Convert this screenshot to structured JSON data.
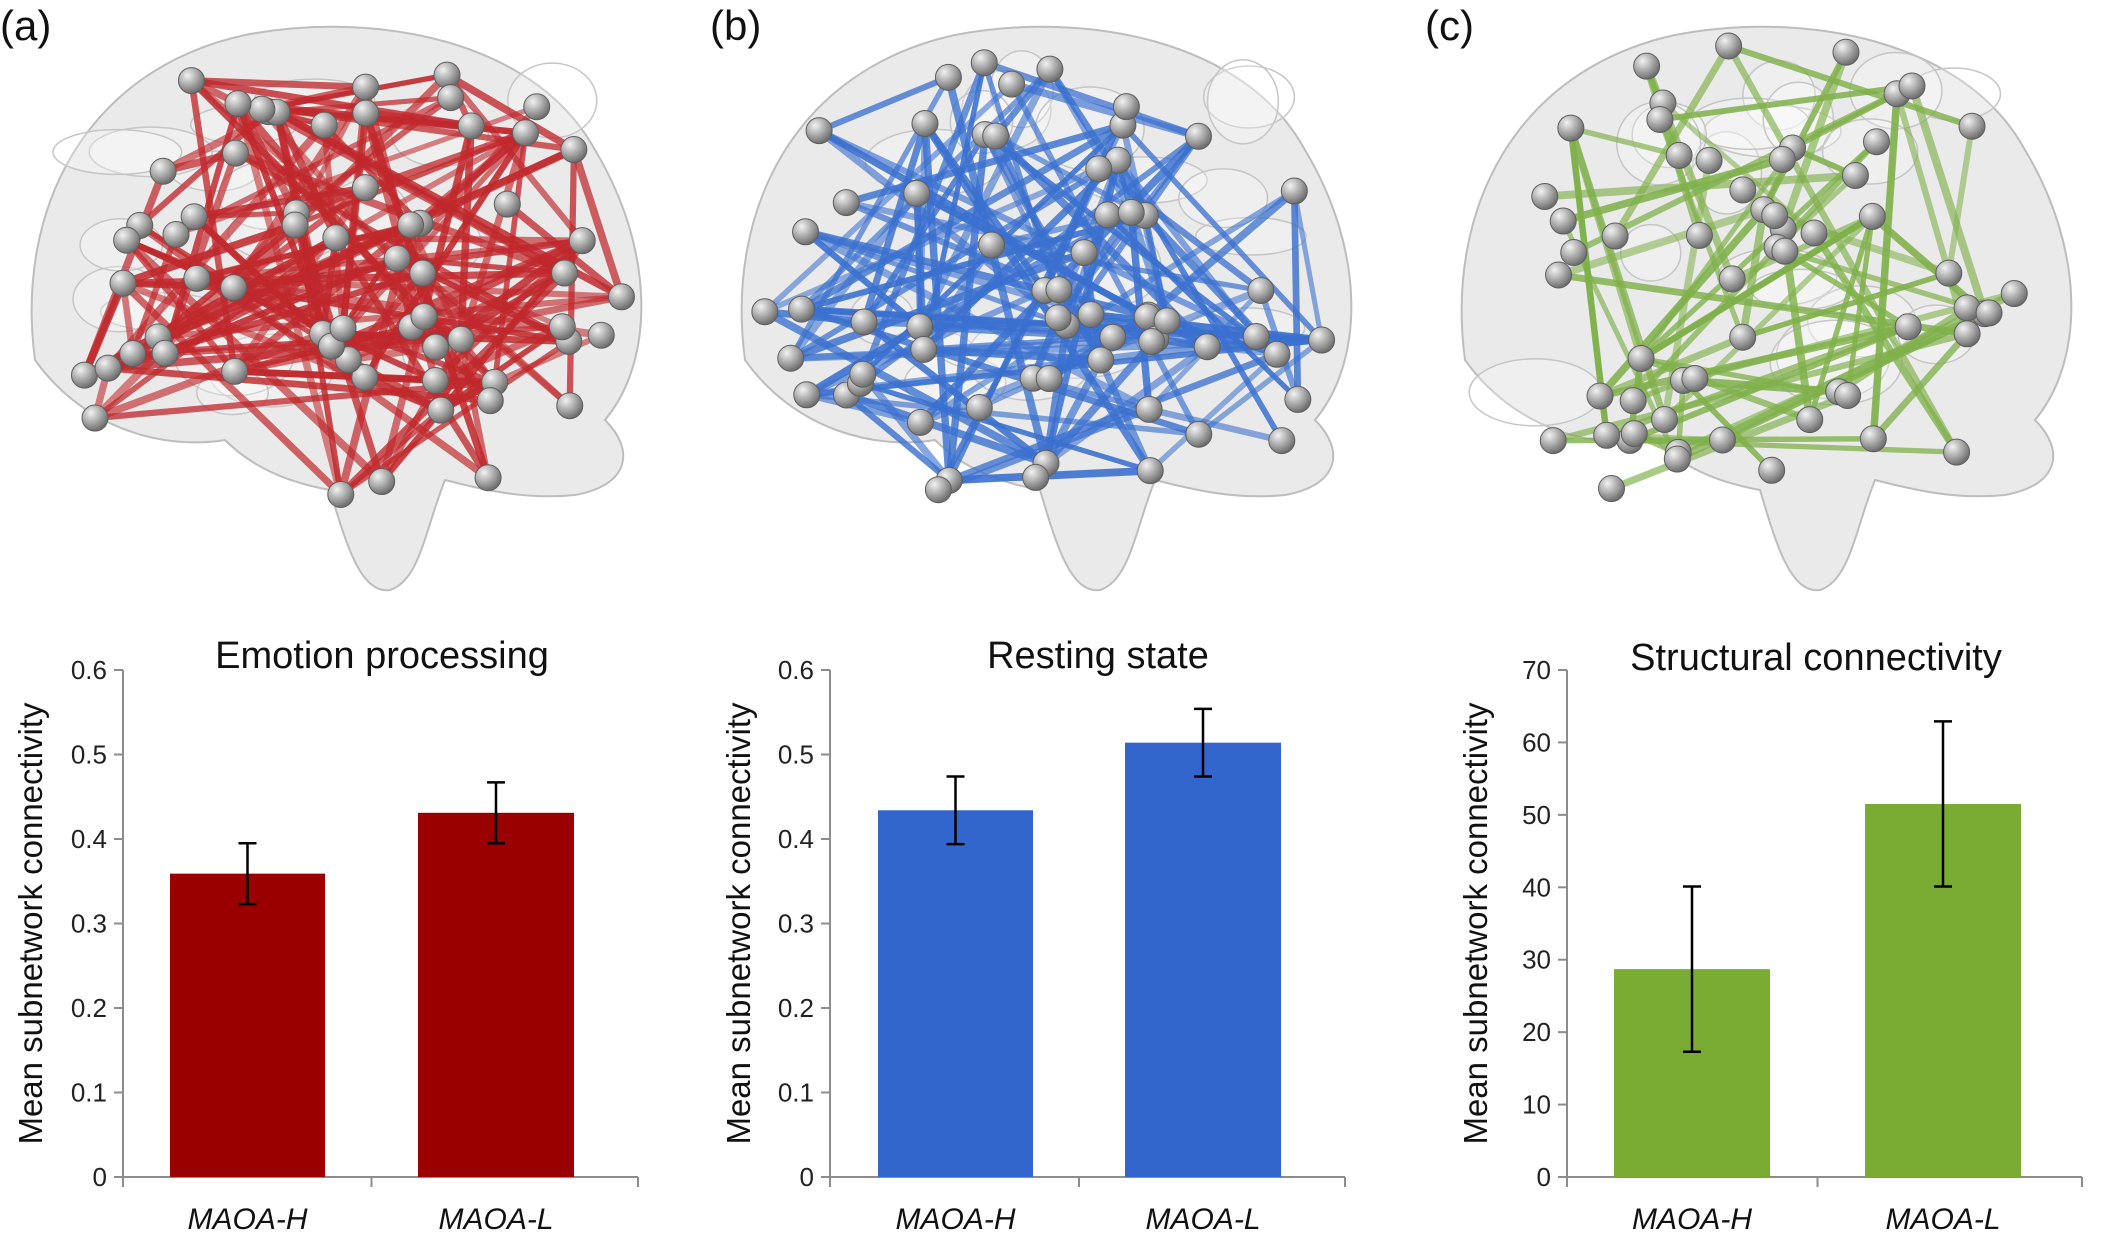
{
  "panels": [
    {
      "letter": "(a)",
      "brain_color": "#c0282c"
    },
    {
      "letter": "(b)",
      "brain_color": "#3a70cf"
    },
    {
      "letter": "(c)",
      "brain_color": "#7fb04a"
    }
  ],
  "chart_data": [
    {
      "type": "bar",
      "title": "Emotion processing",
      "ylabel": "Mean subnetwork connectivity",
      "categories": [
        "MAOA-H",
        "MAOA-L"
      ],
      "values": [
        0.359,
        0.431
      ],
      "errors": [
        0.036,
        0.036
      ],
      "ylim": [
        0,
        0.6
      ],
      "yticks": [
        0,
        0.1,
        0.2,
        0.3,
        0.4,
        0.5,
        0.6
      ],
      "ytick_labels": [
        "0",
        "0.1",
        "0.2",
        "0.3",
        "0.4",
        "0.5",
        "0.6"
      ],
      "color": "#9b0000",
      "grid": false
    },
    {
      "type": "bar",
      "title": "Resting state",
      "ylabel": "Mean subnetwork connectivity",
      "categories": [
        "MAOA-H",
        "MAOA-L"
      ],
      "values": [
        0.434,
        0.514
      ],
      "errors": [
        0.04,
        0.04
      ],
      "ylim": [
        0,
        0.6
      ],
      "yticks": [
        0,
        0.1,
        0.2,
        0.3,
        0.4,
        0.5,
        0.6
      ],
      "ytick_labels": [
        "0",
        "0.1",
        "0.2",
        "0.3",
        "0.4",
        "0.5",
        "0.6"
      ],
      "color": "#3366cc",
      "grid": false
    },
    {
      "type": "bar",
      "title": "Structural connectivity",
      "ylabel": "Mean subnetwork connectivity",
      "categories": [
        "MAOA-H",
        "MAOA-L"
      ],
      "values": [
        28.7,
        51.5
      ],
      "errors": [
        11.4,
        11.4
      ],
      "ylim": [
        0,
        70
      ],
      "yticks": [
        0,
        10,
        20,
        30,
        40,
        50,
        60,
        70
      ],
      "ytick_labels": [
        "0",
        "10",
        "20",
        "30",
        "40",
        "50",
        "60",
        "70"
      ],
      "color": "#7aac34",
      "grid": false
    }
  ]
}
